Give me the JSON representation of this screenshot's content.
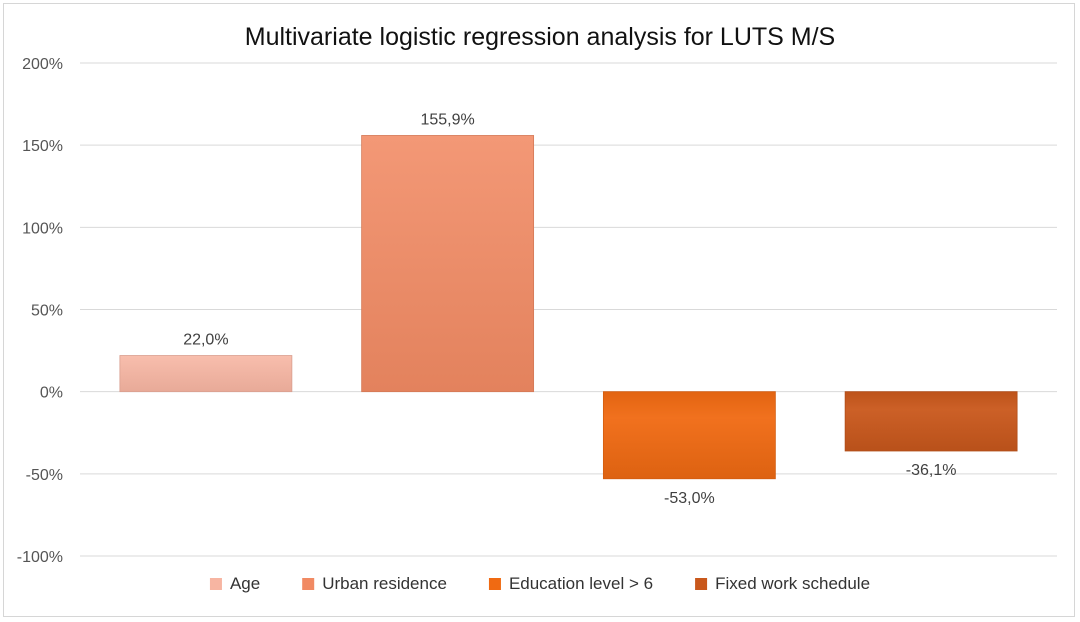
{
  "chart_data": {
    "type": "bar",
    "title": "Multivariate logistic regression analysis for LUTS M/S",
    "categories": [
      "Age",
      "Urban residence",
      "Education level > 6",
      "Fixed work schedule"
    ],
    "values": [
      22.0,
      155.9,
      -53.0,
      -36.1
    ],
    "data_labels": [
      "22,0%",
      "155,9%",
      "-53,0%",
      "-36,1%"
    ],
    "colors": [
      "#f7b5a2",
      "#f18a63",
      "#f06a12",
      "#c9581c"
    ],
    "ylim": [
      -100,
      200
    ],
    "yticks": [
      200,
      150,
      100,
      50,
      0,
      -50,
      -100
    ],
    "ytick_labels": [
      "200%",
      "150%",
      "100%",
      "50%",
      "0%",
      "-50%",
      "-100%"
    ],
    "xlabel": "",
    "ylabel": "",
    "grid": true,
    "legend_position": "bottom"
  }
}
